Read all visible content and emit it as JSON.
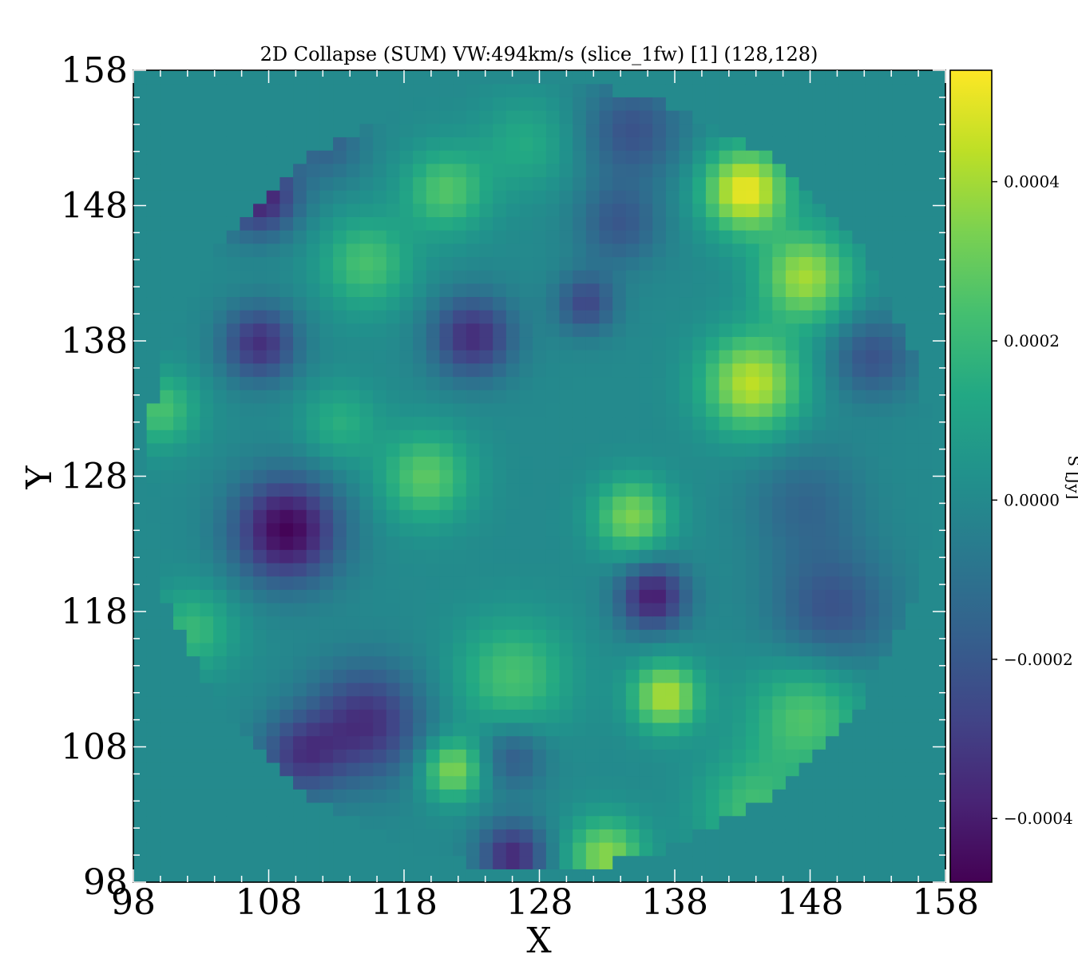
{
  "chart_data": {
    "type": "heatmap",
    "title": "2D Collapse (SUM) VW:494km/s (slice_1fw) [1] (128,128)",
    "xlabel": "X",
    "ylabel": "Y",
    "xlim": [
      98,
      158
    ],
    "ylim": [
      98,
      158
    ],
    "x_ticks": [
      "98",
      "108",
      "118",
      "128",
      "138",
      "148",
      "158"
    ],
    "y_ticks": [
      "98",
      "108",
      "118",
      "128",
      "138",
      "148",
      "158"
    ],
    "colorbar": {
      "label": "S [Jy]",
      "range": [
        -0.00048,
        0.00054
      ],
      "ticks": [
        "0.0004",
        "0.0002",
        "0.0000",
        "−0.0002",
        "−0.0004"
      ],
      "tick_values": [
        0.0004,
        0.0002,
        0.0,
        -0.0002,
        -0.0004
      ],
      "colormap": "viridis"
    },
    "grid": false,
    "field": {
      "center": [
        128,
        128
      ],
      "radius": 29.5,
      "outside_value": 0.0,
      "features": [
        {
          "x": 109,
          "y": 124,
          "amp": -0.00047,
          "sigma": 2.8
        },
        {
          "x": 107,
          "y": 149,
          "amp": -0.0004,
          "sigma": 2.0
        },
        {
          "x": 107,
          "y": 138,
          "amp": -0.00034,
          "sigma": 2.0
        },
        {
          "x": 123,
          "y": 138.5,
          "amp": -0.00035,
          "sigma": 2.2
        },
        {
          "x": 136.5,
          "y": 119,
          "amp": -0.0004,
          "sigma": 1.8
        },
        {
          "x": 115,
          "y": 109.5,
          "amp": -0.00034,
          "sigma": 3.0
        },
        {
          "x": 110,
          "y": 107,
          "amp": -0.00028,
          "sigma": 2.2
        },
        {
          "x": 126,
          "y": 99.5,
          "amp": -0.00036,
          "sigma": 1.8
        },
        {
          "x": 131.5,
          "y": 141,
          "amp": -0.00026,
          "sigma": 1.6
        },
        {
          "x": 135,
          "y": 154,
          "amp": -0.00022,
          "sigma": 2.6
        },
        {
          "x": 134,
          "y": 147,
          "amp": -0.0002,
          "sigma": 2.2
        },
        {
          "x": 153,
          "y": 137,
          "amp": -0.00022,
          "sigma": 2.2
        },
        {
          "x": 150,
          "y": 118,
          "amp": -0.00022,
          "sigma": 3.2
        },
        {
          "x": 126,
          "y": 107,
          "amp": -0.0002,
          "sigma": 1.8
        },
        {
          "x": 112,
          "y": 153,
          "amp": -0.00016,
          "sigma": 2.0
        },
        {
          "x": 148,
          "y": 126,
          "amp": -0.00014,
          "sigma": 3.0
        },
        {
          "x": 143.5,
          "y": 149.5,
          "amp": 0.00052,
          "sigma": 2.2
        },
        {
          "x": 148,
          "y": 143,
          "amp": 0.0004,
          "sigma": 2.4
        },
        {
          "x": 144,
          "y": 135,
          "amp": 0.00044,
          "sigma": 2.6
        },
        {
          "x": 137.5,
          "y": 111.5,
          "amp": 0.00042,
          "sigma": 1.8
        },
        {
          "x": 135,
          "y": 125,
          "amp": 0.00034,
          "sigma": 2.0
        },
        {
          "x": 121.5,
          "y": 106,
          "amp": 0.00036,
          "sigma": 1.6
        },
        {
          "x": 133,
          "y": 99.5,
          "amp": 0.00036,
          "sigma": 2.0
        },
        {
          "x": 119.5,
          "y": 128,
          "amp": 0.00028,
          "sigma": 2.4
        },
        {
          "x": 121,
          "y": 149.5,
          "amp": 0.00026,
          "sigma": 2.2
        },
        {
          "x": 115,
          "y": 144,
          "amp": 0.00024,
          "sigma": 2.4
        },
        {
          "x": 99.5,
          "y": 133,
          "amp": 0.00024,
          "sigma": 2.0
        },
        {
          "x": 102,
          "y": 116.5,
          "amp": 0.0002,
          "sigma": 2.2
        },
        {
          "x": 126,
          "y": 113,
          "amp": 0.00024,
          "sigma": 3.0
        },
        {
          "x": 148,
          "y": 110,
          "amp": 0.00026,
          "sigma": 3.0
        },
        {
          "x": 144,
          "y": 103,
          "amp": 0.00022,
          "sigma": 2.8
        },
        {
          "x": 113,
          "y": 132,
          "amp": 0.00016,
          "sigma": 2.0
        },
        {
          "x": 127,
          "y": 153,
          "amp": 0.00014,
          "sigma": 2.4
        }
      ]
    }
  }
}
